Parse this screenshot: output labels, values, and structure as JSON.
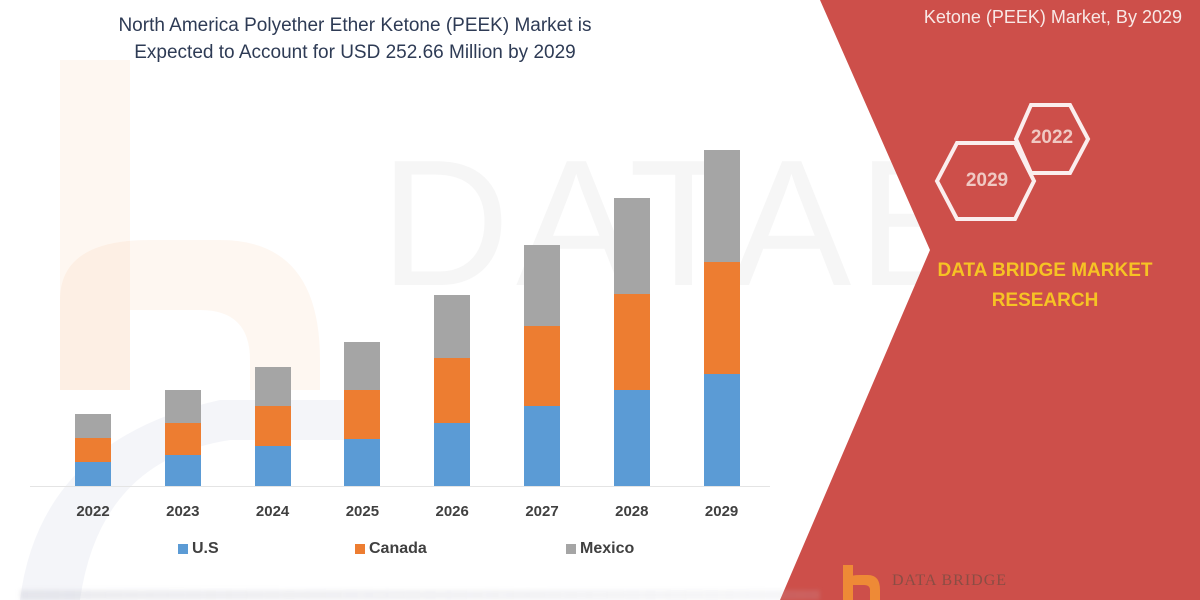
{
  "header": {
    "title_line1": "North America Polyether Ether Ketone (PEEK) Market is",
    "title_line2": "Expected to Account for USD 252.66 Million by 2029"
  },
  "side_panel": {
    "title": "Ketone (PEEK) Market, By 2029",
    "hex_left": "2029",
    "hex_right": "2022",
    "brand_line1": "DATA BRIDGE MARKET",
    "brand_line2": "RESEARCH",
    "logo_text": "DATA BRIDGE",
    "background_color": "#cd4f4a",
    "brand_color": "#f6c324"
  },
  "watermark": "DATABRIDGE",
  "legend": [
    {
      "label": "U.S",
      "color": "#5b9bd5"
    },
    {
      "label": "Canada",
      "color": "#ed7d31"
    },
    {
      "label": "Mexico",
      "color": "#a5a5a5"
    }
  ],
  "chart_data": {
    "type": "bar",
    "stacked": true,
    "title": "North America Polyether Ether Ketone (PEEK) Market is Expected to Account for USD 252.66 Million by 2029",
    "xlabel": "",
    "ylabel": "",
    "y_axis_visible": false,
    "grid": false,
    "legend_position": "bottom",
    "categories": [
      "2022",
      "2023",
      "2024",
      "2025",
      "2026",
      "2027",
      "2028",
      "2029"
    ],
    "series": [
      {
        "name": "U.S",
        "color": "#5b9bd5",
        "values": [
          24,
          31,
          40,
          47,
          63,
          80,
          96,
          112
        ]
      },
      {
        "name": "Canada",
        "color": "#ed7d31",
        "values": [
          24,
          32,
          40,
          49,
          65,
          80,
          96,
          112
        ]
      },
      {
        "name": "Mexico",
        "color": "#a5a5a5",
        "values": [
          24,
          33,
          39,
          48,
          63,
          81,
          96,
          112
        ]
      }
    ],
    "units_note": "relative bar heights (no value axis shown)",
    "ylim": [
      0,
      340
    ]
  }
}
